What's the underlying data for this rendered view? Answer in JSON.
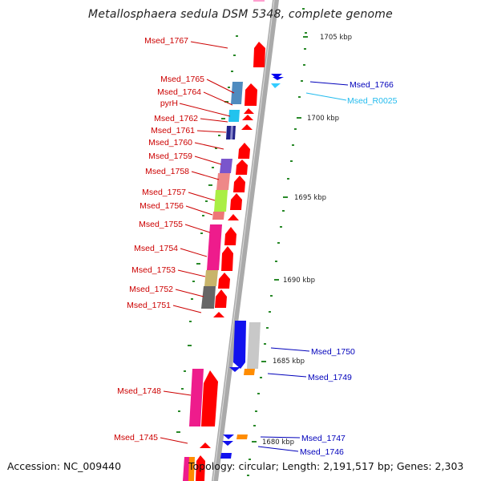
{
  "title": "Metallosphaera sedula DSM 5348, complete genome",
  "footer": {
    "accession": "Accession: NC_009440",
    "summary": "Topology: circular; Length: 2,191,517 bp; Genes: 2,303"
  },
  "colors": {
    "plus_label": "#cc0000",
    "minus_label": "#0000bb",
    "rna_label": "#22bbee",
    "backbone": "#aaaaaa",
    "tick": "#228822"
  },
  "scale": {
    "unit": "kbp",
    "ticks": [
      "1705 kbp",
      "1700 kbp",
      "1695 kbp",
      "1690 kbp",
      "1685 kbp",
      "1680 kbp"
    ]
  },
  "genes_left": [
    {
      "name": "Msed_1767"
    },
    {
      "name": "Msed_1765"
    },
    {
      "name": "Msed_1764"
    },
    {
      "name": "pyrH"
    },
    {
      "name": "Msed_1762"
    },
    {
      "name": "Msed_1761"
    },
    {
      "name": "Msed_1760"
    },
    {
      "name": "Msed_1759"
    },
    {
      "name": "Msed_1758"
    },
    {
      "name": "Msed_1757"
    },
    {
      "name": "Msed_1756"
    },
    {
      "name": "Msed_1755"
    },
    {
      "name": "Msed_1754"
    },
    {
      "name": "Msed_1753"
    },
    {
      "name": "Msed_1752"
    },
    {
      "name": "Msed_1751"
    },
    {
      "name": "Msed_1748"
    },
    {
      "name": "Msed_1745"
    }
  ],
  "genes_right": [
    {
      "name": "Msed_1766",
      "type": "minus"
    },
    {
      "name": "Msed_R0025",
      "type": "rna"
    },
    {
      "name": "Msed_1750",
      "type": "minus"
    },
    {
      "name": "Msed_1749",
      "type": "minus"
    },
    {
      "name": "Msed_1747",
      "type": "minus"
    },
    {
      "name": "Msed_1746",
      "type": "minus"
    }
  ]
}
